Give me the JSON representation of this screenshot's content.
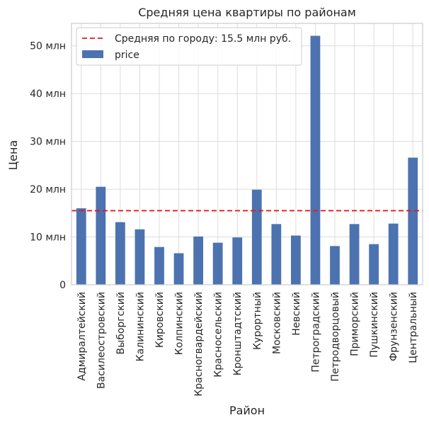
{
  "chart_data": {
    "type": "bar",
    "title": "Средняя цена квартиры по районам",
    "xlabel": "Район",
    "ylabel": "Цена",
    "categories": [
      "Адмиралтейский",
      "Василеостровский",
      "Выборгский",
      "Калининский",
      "Кировский",
      "Колпинский",
      "Красногвардейский",
      "Красносельский",
      "Кронштадтский",
      "Курортный",
      "Московский",
      "Невский",
      "Петроградский",
      "Петродворцовый",
      "Приморский",
      "Пушкинский",
      "Фрунзенский",
      "Центральный"
    ],
    "series": [
      {
        "name": "price",
        "color": "#4c72b0",
        "values": [
          16.0,
          20.5,
          13.1,
          11.6,
          7.9,
          6.6,
          10.1,
          8.8,
          9.9,
          19.9,
          12.7,
          10.3,
          52.1,
          8.1,
          12.7,
          8.5,
          12.8,
          26.6
        ]
      }
    ],
    "ylim": [
      0,
      54.7
    ],
    "yticks": [
      0,
      10,
      20,
      30,
      40,
      50
    ],
    "ytick_labels": [
      "0",
      "10 млн",
      "20 млн",
      "30 млн",
      "40 млн",
      "50 млн"
    ],
    "reference_line": {
      "value": 15.5,
      "label": "Средняя по городу: 15.5 млн руб.",
      "color": "#e41a1c",
      "style": "dashed"
    },
    "grid": true,
    "legend_position": "top-left"
  }
}
